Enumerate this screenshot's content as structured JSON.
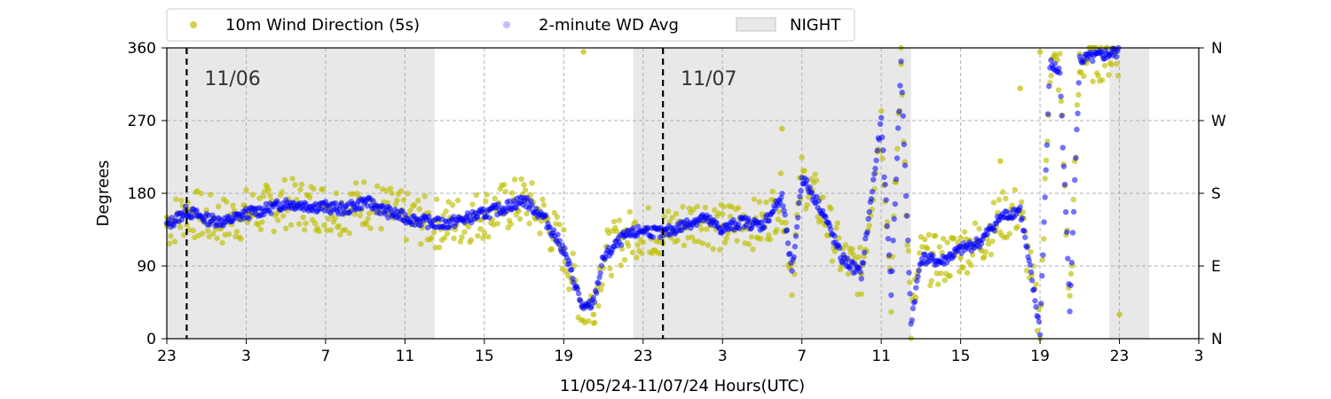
{
  "chart_data": {
    "type": "scatter",
    "title": "",
    "xlabel": "11/05/24-11/07/24  Hours(UTC)",
    "ylabel": "Degrees",
    "x_unit": "hour (UTC)",
    "x_start": "2024-11-05 23:00 UTC",
    "x_end": "2024-11-08 03:00 UTC",
    "ylim": [
      0,
      360
    ],
    "x_tick_labels": [
      "23",
      "3",
      "7",
      "11",
      "15",
      "19",
      "23",
      "3",
      "7",
      "11",
      "15",
      "19",
      "23",
      "3"
    ],
    "y_ticks": [
      0,
      90,
      180,
      270,
      360
    ],
    "y_right_labels": [
      {
        "value": 0,
        "label": "N"
      },
      {
        "value": 90,
        "label": "E"
      },
      {
        "value": 180,
        "label": "S"
      },
      {
        "value": 270,
        "label": "W"
      },
      {
        "value": 360,
        "label": "N"
      }
    ],
    "grid": true,
    "legend_position": "top",
    "legend": [
      {
        "label": "10m Wind Direction (5s)",
        "kind": "marker",
        "color": "#bfbf00"
      },
      {
        "label": "2-minute WD Avg",
        "kind": "marker",
        "color": "#0000ff"
      },
      {
        "label": "NIGHT",
        "kind": "patch",
        "color": "#d9d9d9"
      }
    ],
    "night_periods": [
      {
        "start": "2024-11-05 23:00",
        "end": "2024-11-06 12:30"
      },
      {
        "start": "2024-11-06 22:30",
        "end": "2024-11-07 12:30"
      },
      {
        "start": "2024-11-07 22:30",
        "end": "2024-11-08 00:30"
      }
    ],
    "day_markers": [
      {
        "time": "2024-11-06 00:00",
        "label": "11/06"
      },
      {
        "time": "2024-11-07 00:00",
        "label": "11/07"
      }
    ],
    "series": [
      {
        "name": "2-minute WD Avg",
        "color": "#0000ff",
        "points": [
          {
            "t": "2024-11-05 23:00",
            "deg": 140
          },
          {
            "t": "2024-11-06 00:00",
            "deg": 158
          },
          {
            "t": "2024-11-06 01:00",
            "deg": 148
          },
          {
            "t": "2024-11-06 02:00",
            "deg": 145
          },
          {
            "t": "2024-11-06 03:00",
            "deg": 155
          },
          {
            "t": "2024-11-06 04:00",
            "deg": 160
          },
          {
            "t": "2024-11-06 05:00",
            "deg": 168
          },
          {
            "t": "2024-11-06 06:00",
            "deg": 165
          },
          {
            "t": "2024-11-06 07:00",
            "deg": 163
          },
          {
            "t": "2024-11-06 08:00",
            "deg": 160
          },
          {
            "t": "2024-11-06 09:00",
            "deg": 170
          },
          {
            "t": "2024-11-06 10:00",
            "deg": 158
          },
          {
            "t": "2024-11-06 11:00",
            "deg": 150
          },
          {
            "t": "2024-11-06 12:00",
            "deg": 145
          },
          {
            "t": "2024-11-06 13:00",
            "deg": 142
          },
          {
            "t": "2024-11-06 14:00",
            "deg": 148
          },
          {
            "t": "2024-11-06 15:00",
            "deg": 155
          },
          {
            "t": "2024-11-06 16:00",
            "deg": 162
          },
          {
            "t": "2024-11-06 17:00",
            "deg": 172
          },
          {
            "t": "2024-11-06 18:00",
            "deg": 150
          },
          {
            "t": "2024-11-06 19:00",
            "deg": 110
          },
          {
            "t": "2024-11-06 20:00",
            "deg": 35
          },
          {
            "t": "2024-11-06 20:30",
            "deg": 45
          },
          {
            "t": "2024-11-06 21:00",
            "deg": 100
          },
          {
            "t": "2024-11-06 22:00",
            "deg": 125
          },
          {
            "t": "2024-11-06 23:00",
            "deg": 135
          },
          {
            "t": "2024-11-07 00:00",
            "deg": 130
          },
          {
            "t": "2024-11-07 01:00",
            "deg": 140
          },
          {
            "t": "2024-11-07 02:00",
            "deg": 150
          },
          {
            "t": "2024-11-07 03:00",
            "deg": 135
          },
          {
            "t": "2024-11-07 04:00",
            "deg": 145
          },
          {
            "t": "2024-11-07 05:00",
            "deg": 140
          },
          {
            "t": "2024-11-07 06:00",
            "deg": 175
          },
          {
            "t": "2024-11-07 06:30",
            "deg": 80
          },
          {
            "t": "2024-11-07 07:00",
            "deg": 200
          },
          {
            "t": "2024-11-07 08:00",
            "deg": 160
          },
          {
            "t": "2024-11-07 09:00",
            "deg": 100
          },
          {
            "t": "2024-11-07 10:00",
            "deg": 80
          },
          {
            "t": "2024-11-07 11:00",
            "deg": 270
          },
          {
            "t": "2024-11-07 11:30",
            "deg": 60
          },
          {
            "t": "2024-11-07 12:00",
            "deg": 340
          },
          {
            "t": "2024-11-07 12:30",
            "deg": 20
          },
          {
            "t": "2024-11-07 13:00",
            "deg": 100
          },
          {
            "t": "2024-11-07 14:00",
            "deg": 95
          },
          {
            "t": "2024-11-07 15:00",
            "deg": 110
          },
          {
            "t": "2024-11-07 16:00",
            "deg": 120
          },
          {
            "t": "2024-11-07 17:00",
            "deg": 150
          },
          {
            "t": "2024-11-07 18:00",
            "deg": 160
          },
          {
            "t": "2024-11-07 19:00",
            "deg": 10
          },
          {
            "t": "2024-11-07 19:30",
            "deg": 340
          },
          {
            "t": "2024-11-07 20:00",
            "deg": 330
          },
          {
            "t": "2024-11-07 20:30",
            "deg": 40
          },
          {
            "t": "2024-11-07 21:00",
            "deg": 345
          },
          {
            "t": "2024-11-07 22:00",
            "deg": 350
          },
          {
            "t": "2024-11-07 23:00",
            "deg": 355
          }
        ]
      },
      {
        "name": "10m Wind Direction (5s)",
        "color": "#bfbf00",
        "points": [
          {
            "t": "2024-11-05 23:00",
            "deg": 150
          },
          {
            "t": "2024-11-06 00:00",
            "deg": 160
          },
          {
            "t": "2024-11-06 03:00",
            "deg": 155
          },
          {
            "t": "2024-11-06 07:00",
            "deg": 162
          },
          {
            "t": "2024-11-06 11:00",
            "deg": 150
          },
          {
            "t": "2024-11-06 15:00",
            "deg": 155
          },
          {
            "t": "2024-11-06 17:00",
            "deg": 170
          },
          {
            "t": "2024-11-06 19:00",
            "deg": 110
          },
          {
            "t": "2024-11-06 20:00",
            "deg": 355
          },
          {
            "t": "2024-11-06 20:30",
            "deg": 30
          },
          {
            "t": "2024-11-06 22:00",
            "deg": 125
          },
          {
            "t": "2024-11-07 03:00",
            "deg": 140
          },
          {
            "t": "2024-11-07 06:00",
            "deg": 260
          },
          {
            "t": "2024-11-07 07:00",
            "deg": 200
          },
          {
            "t": "2024-11-07 10:00",
            "deg": 80
          },
          {
            "t": "2024-11-07 12:00",
            "deg": 340
          },
          {
            "t": "2024-11-07 15:00",
            "deg": 100
          },
          {
            "t": "2024-11-07 17:00",
            "deg": 220
          },
          {
            "t": "2024-11-07 18:00",
            "deg": 310
          },
          {
            "t": "2024-11-07 19:00",
            "deg": 355
          },
          {
            "t": "2024-11-07 21:00",
            "deg": 330
          },
          {
            "t": "2024-11-07 23:00",
            "deg": 30
          }
        ]
      }
    ]
  }
}
